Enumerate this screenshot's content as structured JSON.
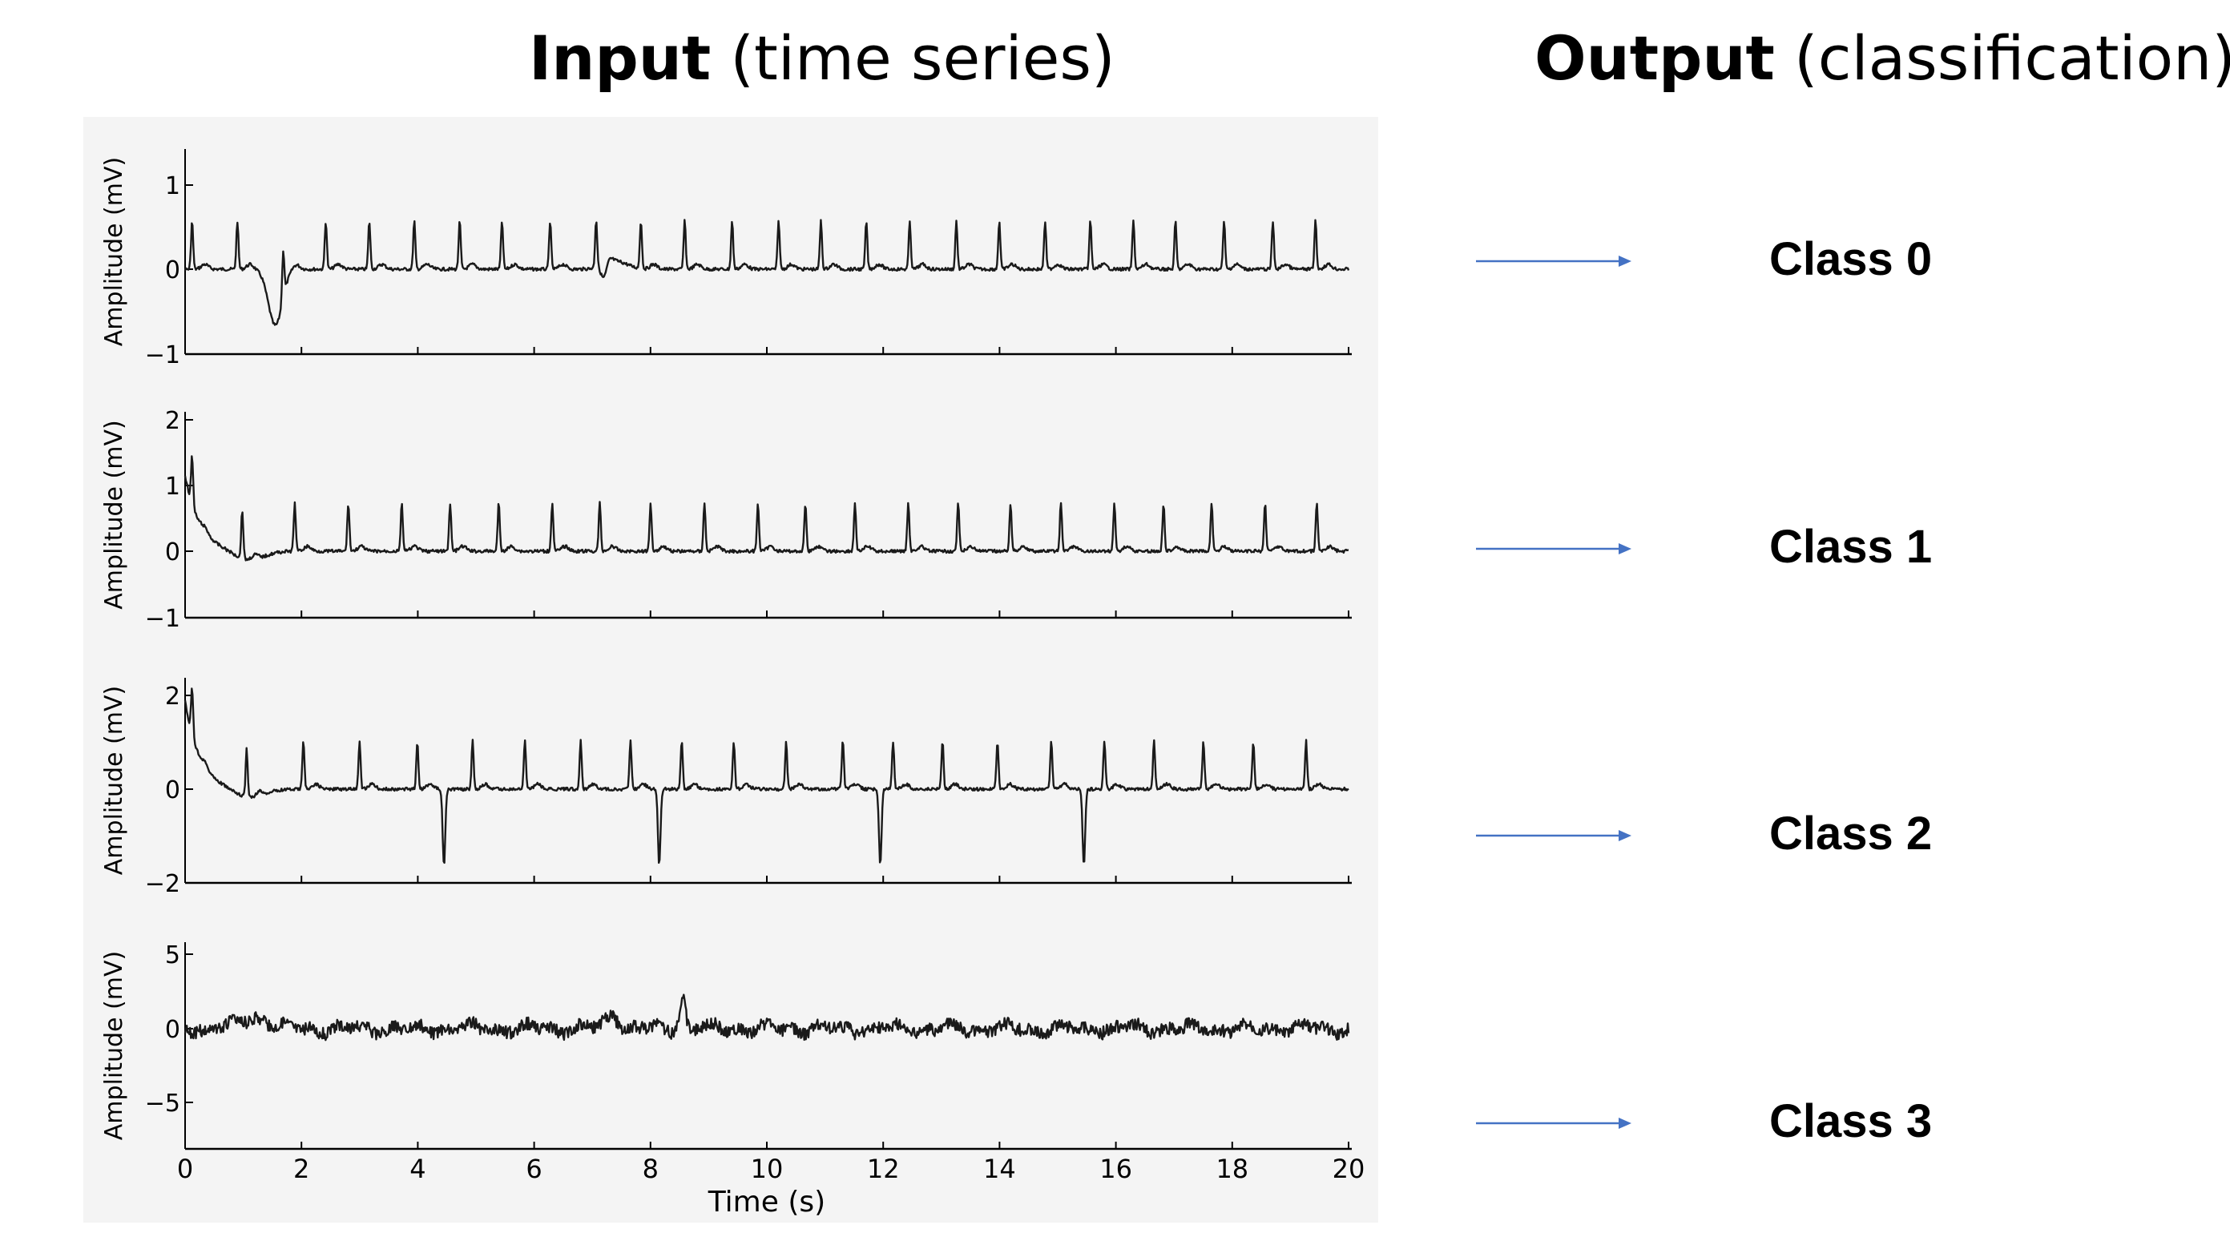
{
  "input_heading": {
    "bold": "Input",
    "rest": " (time series)"
  },
  "output_heading": {
    "bold": "Output",
    "rest": " (classification)"
  },
  "figure": {
    "xlabel": "Time (s)",
    "ylabel": "Amplitude (mV)",
    "x_ticks": [
      "0",
      "2",
      "4",
      "6",
      "8",
      "10",
      "12",
      "14",
      "16",
      "18",
      "20"
    ],
    "panels": [
      {
        "y_ticks": [
          "1",
          "0",
          "−1"
        ]
      },
      {
        "y_ticks": [
          "2",
          "1",
          "0",
          "−1"
        ]
      },
      {
        "y_ticks": [
          "2",
          "0",
          "−2"
        ]
      },
      {
        "y_ticks": [
          "5",
          "0",
          "−5"
        ]
      }
    ]
  },
  "classes": [
    "Class 0",
    "Class 1",
    "Class 2",
    "Class 3"
  ],
  "colors": {
    "arrow": "#4472c4",
    "trace": "#1a1a1a",
    "figure_bg": "#f4f4f4"
  }
}
